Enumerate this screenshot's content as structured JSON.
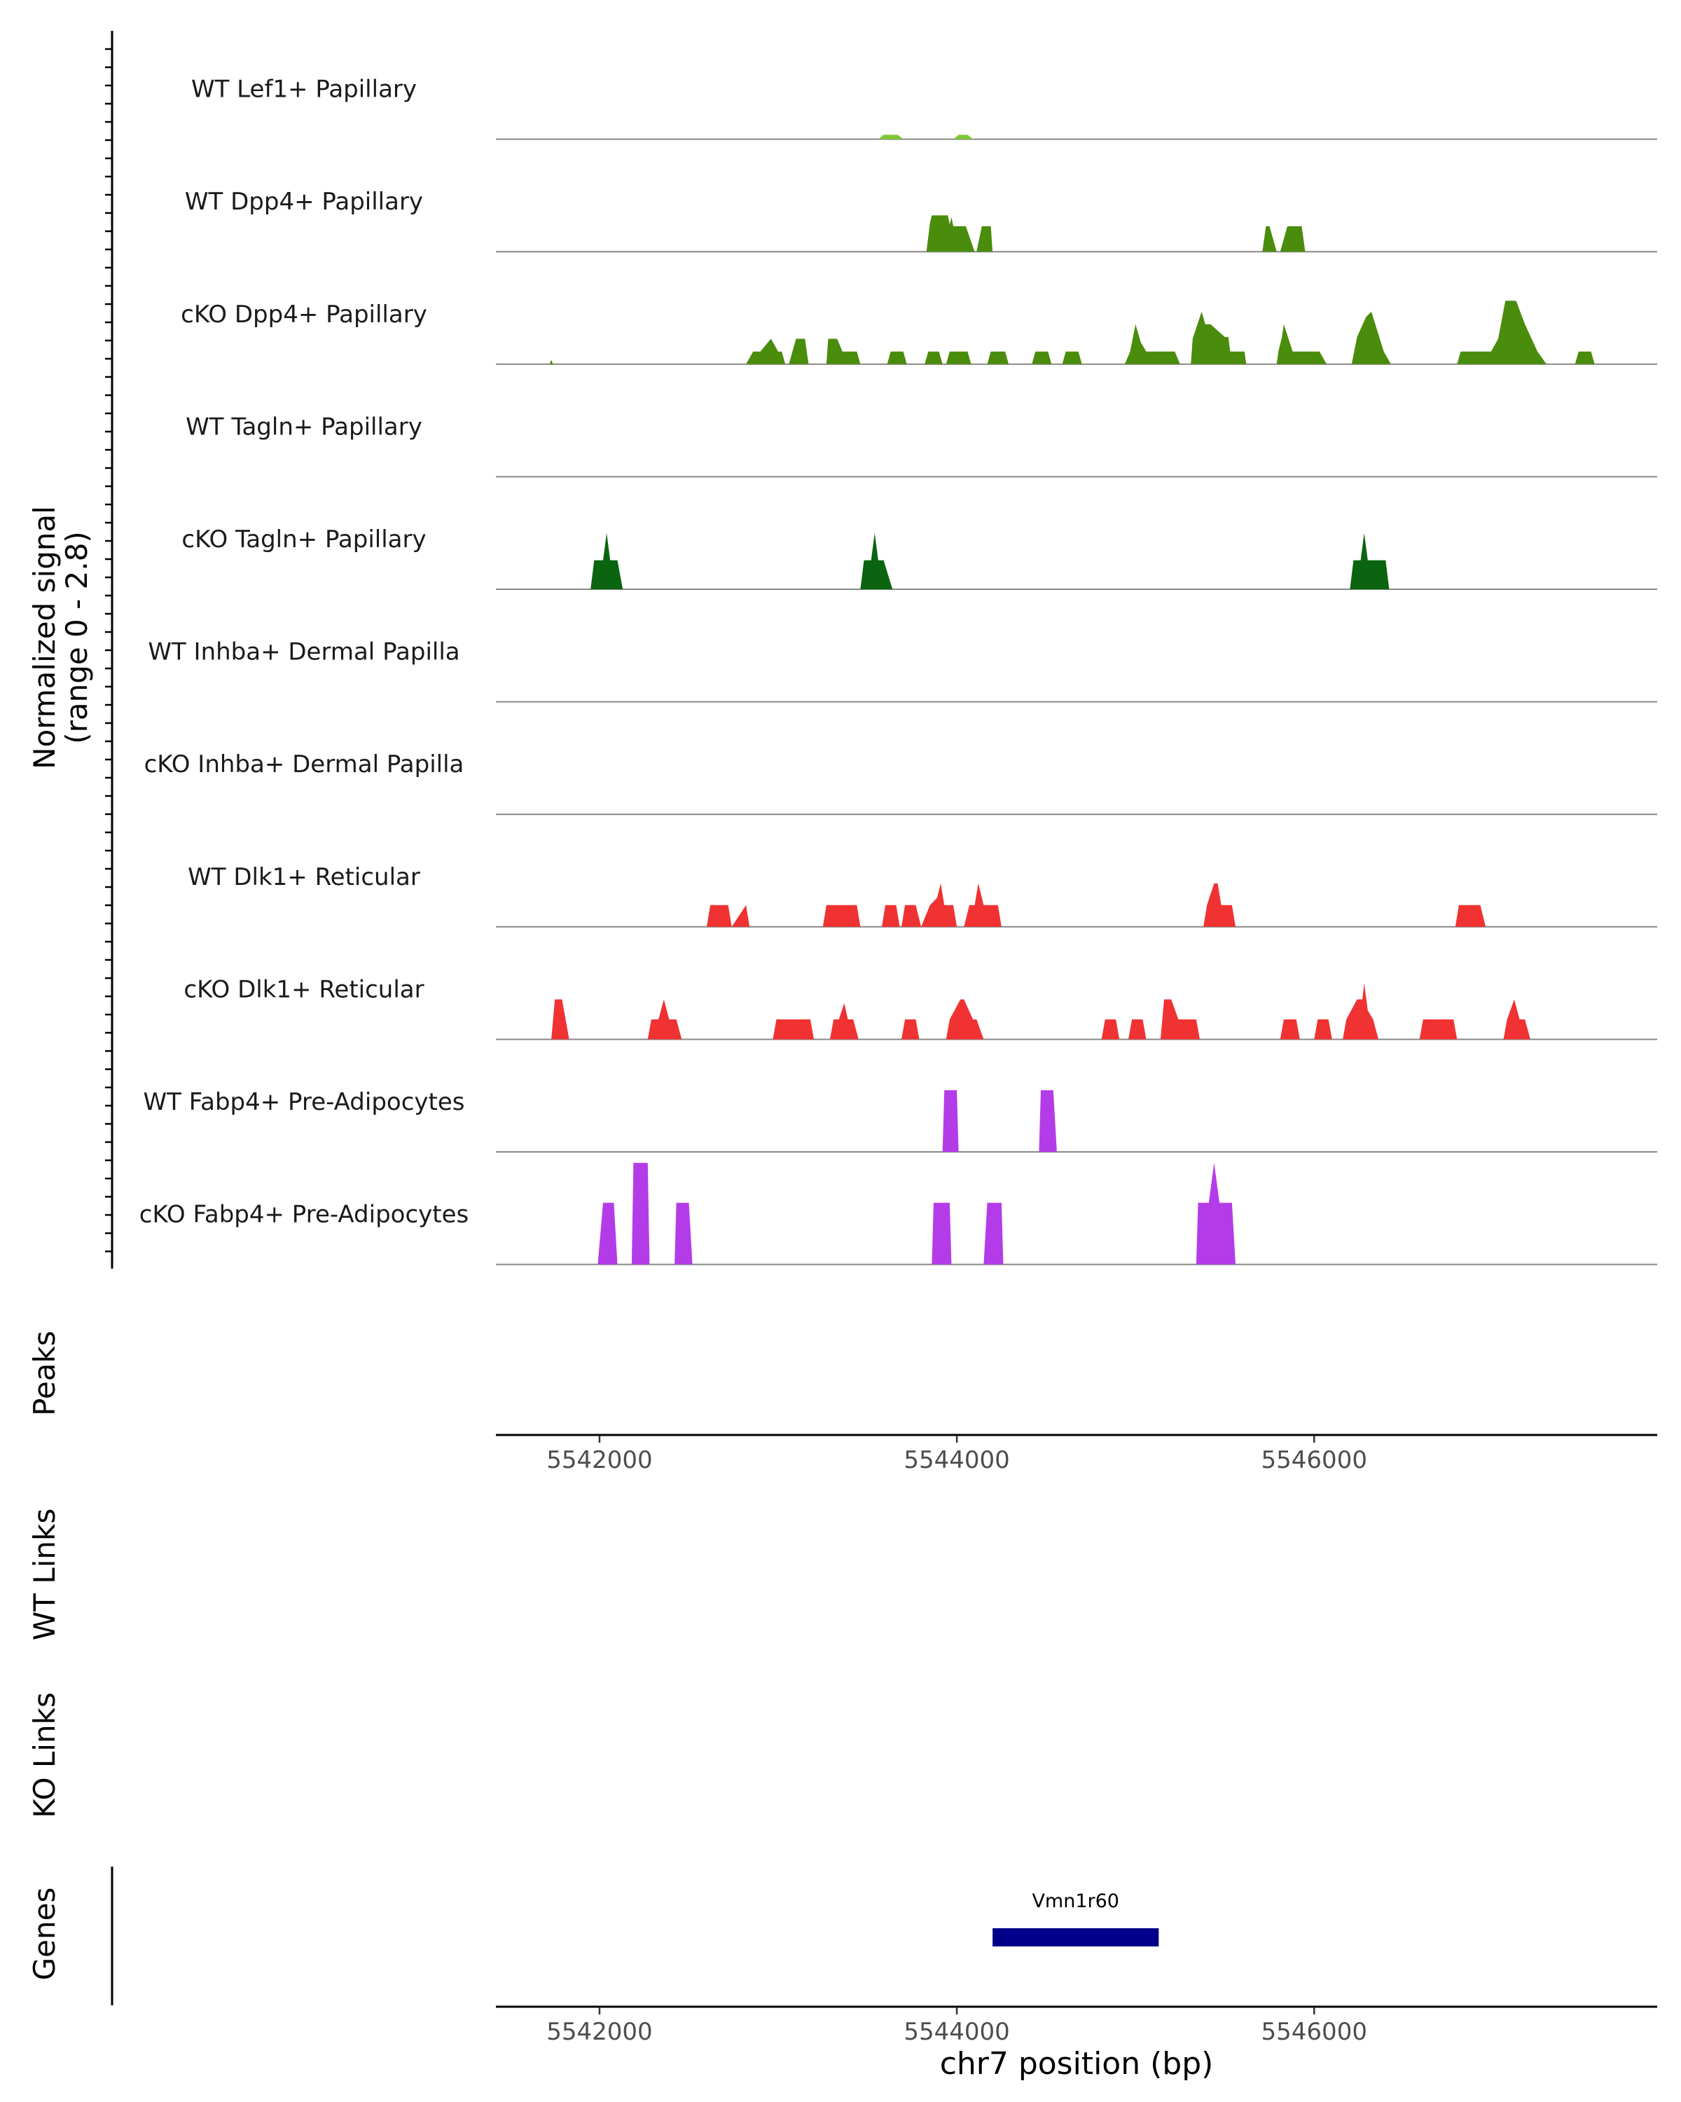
{
  "chart_data": {
    "type": "area",
    "title": "",
    "chromosome": "chr7",
    "xlim": [
      5541420,
      5547920
    ],
    "ylim": [
      0,
      2.8
    ],
    "ylabel_line1": "Normalized signal",
    "ylabel_line2": "(range 0 - 2.8)",
    "xlabel": "chr7 position (bp)",
    "xticks": [
      5542000,
      5544000,
      5546000
    ],
    "xtick_labels": [
      "5542000",
      "5544000",
      "5546000"
    ],
    "colors": {
      "lef1": "#7ec832",
      "dpp4": "#4a8c0c",
      "tagln": "#0a6410",
      "dlk1": "#f03232",
      "fabp4": "#b43ce8",
      "gene": "#00008b"
    },
    "series": [
      {
        "name": "WT Lef1+ Papillary",
        "color_key": "lef1",
        "x": [
          5543560,
          5543590,
          5543670,
          5543700,
          5543980,
          5544010,
          5544060,
          5544090
        ],
        "y": [
          0,
          0.12,
          0.12,
          0,
          0,
          0.12,
          0.12,
          0
        ]
      },
      {
        "name": "WT Dpp4+ Papillary",
        "color_key": "dpp4",
        "x": [
          5543830,
          5543850,
          5543860,
          5543950,
          5543960,
          5543970,
          5543980,
          5544000,
          5544020,
          5544050,
          5544100,
          5544110,
          5544140,
          5544170,
          5544190,
          5544200,
          5545710,
          5545730,
          5545750,
          5545790,
          5545810,
          5545850,
          5545870,
          5545930,
          5545950
        ],
        "y": [
          0,
          0.8,
          1.0,
          1.0,
          0.75,
          0.95,
          0.7,
          0.7,
          0.7,
          0.7,
          0,
          0,
          0.7,
          0.7,
          0.7,
          0,
          0,
          0.7,
          0.7,
          0,
          0,
          0.7,
          0.7,
          0.7,
          0
        ]
      },
      {
        "name": "cKO Dpp4+ Papillary",
        "color_key": "dpp4",
        "x": [
          5541720,
          5541730,
          5541740,
          5542820,
          5542860,
          5542900,
          5542960,
          5543000,
          5543020,
          5543040,
          5543060,
          5543100,
          5543150,
          5543170,
          5543270,
          5543280,
          5543330,
          5543360,
          5543390,
          5543440,
          5543460,
          5543610,
          5543630,
          5543700,
          5543720,
          5543820,
          5543840,
          5543900,
          5543920,
          5543940,
          5543960,
          5544060,
          5544080,
          5544170,
          5544190,
          5544270,
          5544290,
          5544420,
          5544440,
          5544510,
          5544530,
          5544590,
          5544610,
          5544680,
          5544700,
          5544940,
          5544970,
          5545000,
          5545030,
          5545060,
          5545090,
          5545120,
          5545220,
          5545250,
          5545310,
          5545320,
          5545370,
          5545390,
          5545420,
          5545500,
          5545520,
          5545530,
          5545610,
          5545620,
          5545790,
          5545800,
          5545820,
          5545830,
          5545880,
          5545910,
          5545950,
          5546030,
          5546070,
          5546210,
          5546240,
          5546290,
          5546320,
          5546390,
          5546430,
          5546800,
          5546820,
          5546960,
          5546990,
          5547030,
          5547070,
          5547130,
          5547180,
          5547250,
          5547300,
          5547460,
          5547480,
          5547550,
          5547570
        ],
        "y": [
          0,
          0.12,
          0,
          0,
          0.35,
          0.35,
          0.7,
          0.35,
          0.35,
          0,
          0,
          0.7,
          0.7,
          0,
          0,
          0.7,
          0.7,
          0.35,
          0.35,
          0.35,
          0,
          0,
          0.35,
          0.35,
          0,
          0,
          0.35,
          0.35,
          0,
          0,
          0.35,
          0.35,
          0,
          0,
          0.35,
          0.35,
          0,
          0,
          0.35,
          0.35,
          0,
          0,
          0.35,
          0.35,
          0,
          0,
          0.35,
          1.1,
          0.6,
          0.35,
          0.35,
          0.35,
          0.35,
          0,
          0,
          0.7,
          1.45,
          1.1,
          1.1,
          0.75,
          0.75,
          0.35,
          0.35,
          0,
          0,
          0.35,
          0.75,
          1.1,
          0.35,
          0.35,
          0.35,
          0.35,
          0,
          0,
          0.75,
          1.3,
          1.45,
          0.35,
          0,
          0,
          0.35,
          0.35,
          0.35,
          0.7,
          1.75,
          1.75,
          1.1,
          0.35,
          0,
          0,
          0.35,
          0.35,
          0
        ]
      },
      {
        "name": "WT Tagln+ Papillary",
        "color_key": "tagln",
        "x": [],
        "y": []
      },
      {
        "name": "cKO Tagln+ Papillary",
        "color_key": "tagln",
        "x": [
          5541950,
          5541970,
          5542020,
          5542040,
          5542060,
          5542100,
          5542130,
          5543460,
          5543480,
          5543520,
          5543540,
          5543560,
          5543590,
          5543640,
          5546200,
          5546220,
          5546260,
          5546280,
          5546300,
          5546400,
          5546420
        ],
        "y": [
          0,
          0.8,
          0.8,
          1.55,
          0.8,
          0.8,
          0,
          0,
          0.8,
          0.8,
          1.55,
          0.8,
          0.8,
          0,
          0,
          0.8,
          0.8,
          1.55,
          0.8,
          0.8,
          0
        ]
      },
      {
        "name": "WT Inhba+ Dermal Papilla",
        "color_key": "tagln",
        "x": [],
        "y": []
      },
      {
        "name": "cKO Inhba+ Dermal Papilla",
        "color_key": "tagln",
        "x": [],
        "y": []
      },
      {
        "name": "WT Dlk1+ Reticular",
        "color_key": "dlk1",
        "x": [
          5542600,
          5542620,
          5542720,
          5542740,
          5542820,
          5542840,
          5543250,
          5543270,
          5543440,
          5543460,
          5543580,
          5543600,
          5543660,
          5543680,
          5543690,
          5543710,
          5543770,
          5543800,
          5543850,
          5543890,
          5543910,
          5543930,
          5543980,
          5544000,
          5544040,
          5544070,
          5544100,
          5544120,
          5544150,
          5544180,
          5544230,
          5544250,
          5545380,
          5545400,
          5545440,
          5545460,
          5545480,
          5545540,
          5545560,
          5546790,
          5546810,
          5546930,
          5546960
        ],
        "y": [
          0,
          0.6,
          0.6,
          0,
          0.6,
          0,
          0,
          0.6,
          0.6,
          0,
          0,
          0.6,
          0.6,
          0,
          0,
          0.6,
          0.6,
          0,
          0.6,
          0.8,
          1.2,
          0.6,
          0.6,
          0,
          0,
          0.6,
          0.6,
          1.2,
          0.6,
          0.6,
          0.6,
          0,
          0,
          0.6,
          1.2,
          1.2,
          0.6,
          0.6,
          0,
          0,
          0.6,
          0.6,
          0
        ],
        "note": "bumps read from plot; approximate"
      },
      {
        "name": "cKO Dlk1+ Reticular",
        "color_key": "dlk1",
        "x": [
          5541730,
          5541750,
          5541790,
          5541830,
          5542270,
          5542290,
          5542330,
          5542360,
          5542390,
          5542430,
          5542460,
          5542970,
          5542990,
          5543180,
          5543200,
          5543290,
          5543310,
          5543340,
          5543370,
          5543390,
          5543420,
          5543450,
          5543690,
          5543710,
          5543770,
          5543790,
          5543940,
          5543960,
          5544020,
          5544040,
          5544090,
          5544110,
          5544150,
          5544810,
          5544830,
          5544890,
          5544910,
          5544960,
          5544980,
          5545040,
          5545060,
          5545140,
          5545160,
          5545200,
          5545240,
          5545260,
          5545340,
          5545360,
          5545810,
          5545830,
          5545900,
          5545920,
          5546000,
          5546020,
          5546080,
          5546100,
          5546160,
          5546180,
          5546240,
          5546270,
          5546280,
          5546300,
          5546330,
          5546360,
          5546590,
          5546610,
          5546690,
          5546700,
          5546780,
          5546800,
          5547060,
          5547080,
          5547120,
          5547150,
          5547180,
          5547210
        ],
        "y": [
          0,
          1.1,
          1.1,
          0,
          0,
          0.55,
          0.55,
          1.1,
          0.55,
          0.55,
          0,
          0,
          0.55,
          0.55,
          0,
          0,
          0.55,
          0.55,
          1.0,
          0.55,
          0.55,
          0,
          0,
          0.55,
          0.55,
          0,
          0,
          0.55,
          1.1,
          1.1,
          0.55,
          0.55,
          0,
          0,
          0.55,
          0.55,
          0,
          0,
          0.55,
          0.55,
          0,
          0,
          1.1,
          1.1,
          0.55,
          0.55,
          0.55,
          0,
          0,
          0.55,
          0.55,
          0,
          0,
          0.55,
          0.55,
          0,
          0,
          0.55,
          1.1,
          1.1,
          1.55,
          0.8,
          0.55,
          0,
          0,
          0.55,
          0.55,
          0.55,
          0.55,
          0,
          0,
          0.55,
          1.1,
          0.55,
          0.55,
          0
        ]
      },
      {
        "name": "WT Fabp4+ Pre-Adipocytes",
        "color_key": "fabp4",
        "x": [
          5543920,
          5543930,
          5544000,
          5544010,
          5544460,
          5544470,
          5544540,
          5544560
        ],
        "y": [
          0,
          1.7,
          1.7,
          0,
          0,
          1.7,
          1.7,
          0
        ]
      },
      {
        "name": "cKO Fabp4+ Pre-Adipocytes",
        "color_key": "fabp4",
        "x": [
          5541990,
          5542020,
          5542080,
          5542100,
          5542180,
          5542190,
          5542270,
          5542280,
          5542420,
          5542430,
          5542500,
          5542520,
          5543860,
          5543870,
          5543960,
          5543970,
          5544150,
          5544170,
          5544250,
          5544260,
          5545340,
          5545350,
          5545410,
          5545440,
          5545470,
          5545540,
          5545560
        ],
        "y": [
          0,
          1.7,
          1.7,
          0,
          0,
          2.8,
          2.8,
          0,
          0,
          1.7,
          1.7,
          0,
          0,
          1.7,
          1.7,
          0,
          0,
          1.7,
          1.7,
          0,
          0,
          1.7,
          1.7,
          2.8,
          1.7,
          1.7,
          0
        ]
      }
    ],
    "side_titles": {
      "peaks": "Peaks",
      "wt_links": "WT Links",
      "ko_links": "KO Links",
      "genes": "Genes"
    },
    "genes": [
      {
        "name": "Vmn1r60",
        "start": 5544200,
        "end": 5545130
      }
    ]
  }
}
